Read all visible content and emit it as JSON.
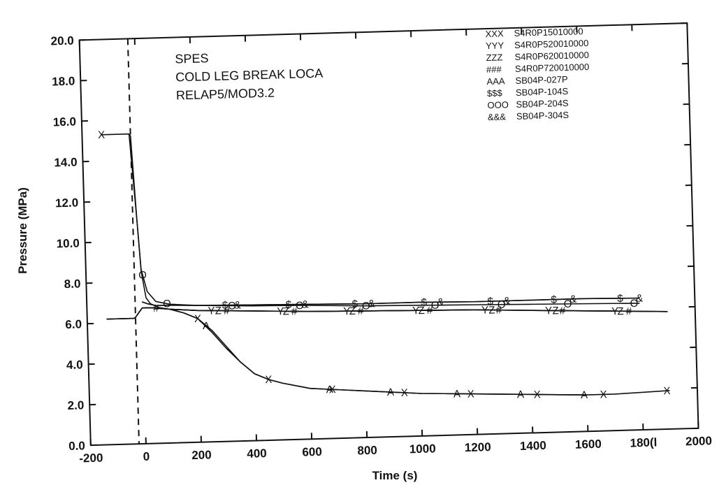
{
  "chart_data": {
    "type": "line",
    "title": "",
    "xlabel": "Time (s)",
    "ylabel": "Pressure (MPa)",
    "xlim": [
      -200,
      2000
    ],
    "ylim": [
      0.0,
      20.0
    ],
    "x_ticks": [
      "-200",
      "0",
      "200",
      "400",
      "600",
      "800",
      "1000",
      "1200",
      "1400",
      "1600",
      "180(l",
      "2000"
    ],
    "y_ticks": [
      "0.0",
      "2.0",
      "4.0",
      "6.0",
      "8.0",
      "10.0",
      "12.0",
      "14.0",
      "16.0",
      "18.0",
      "20.0"
    ],
    "grid": false,
    "legend_position": "top-right",
    "annotations": [
      "SPES",
      "COLD LEG BREAK LOCA",
      "RELAP5/MOD3.2"
    ],
    "vertical_dashed_line_x": -25,
    "series": [
      {
        "name": "S4R0P15010000",
        "marker": "X",
        "legend_marker": "XXX",
        "x": [
          -130,
          -30,
          -25,
          -10,
          0,
          15,
          30,
          60,
          100,
          150,
          200,
          250,
          300,
          350,
          400,
          450,
          500,
          600,
          700,
          800,
          900,
          1000,
          1100,
          1200,
          1300,
          1400,
          1500,
          1600,
          1700,
          1800,
          1900
        ],
        "y": [
          15.3,
          15.3,
          15.2,
          11.0,
          8.5,
          7.2,
          6.9,
          6.7,
          6.6,
          6.4,
          6.1,
          5.4,
          4.6,
          3.9,
          3.3,
          3.0,
          2.8,
          2.5,
          2.4,
          2.3,
          2.2,
          2.1,
          2.05,
          2.0,
          1.95,
          1.9,
          1.85,
          1.8,
          1.8,
          1.85,
          1.9
        ],
        "marker_x": [
          -130,
          200,
          450,
          680,
          940,
          1180,
          1420,
          1660,
          1890
        ]
      },
      {
        "name": "S4R0P520010000",
        "marker": "Y",
        "legend_marker": "YYY",
        "x": [
          -130,
          -30,
          -25,
          0,
          30,
          100,
          200,
          400,
          600,
          800,
          1000,
          1200,
          1400,
          1600,
          1700,
          1800,
          1900
        ],
        "y": [
          6.2,
          6.2,
          6.25,
          6.7,
          6.7,
          6.6,
          6.5,
          6.4,
          6.3,
          6.25,
          6.2,
          6.15,
          6.05,
          5.95,
          5.9,
          5.85,
          5.8
        ],
        "marker_x": [
          250,
          500,
          740,
          990,
          1240,
          1470,
          1710
        ]
      },
      {
        "name": "S4R0P620010000",
        "marker": "Z",
        "legend_marker": "ZZZ",
        "x": [
          -130,
          -30,
          -25,
          0,
          30,
          100,
          200,
          400,
          600,
          800,
          1000,
          1200,
          1400,
          1600,
          1700,
          1800,
          1900
        ],
        "y": [
          6.2,
          6.2,
          6.25,
          6.7,
          6.7,
          6.6,
          6.5,
          6.4,
          6.3,
          6.25,
          6.2,
          6.15,
          6.05,
          5.95,
          5.9,
          5.85,
          5.8
        ],
        "marker_x": [
          275,
          520,
          760,
          1010,
          1265,
          1495,
          1730
        ]
      },
      {
        "name": "S4R0P720010000",
        "marker": "#",
        "legend_marker": "###",
        "x": [
          -130,
          -30,
          -25,
          0,
          30,
          100,
          200,
          400,
          600,
          800,
          1000,
          1200,
          1400,
          1600,
          1700,
          1800,
          1900
        ],
        "y": [
          6.2,
          6.2,
          6.25,
          6.7,
          6.7,
          6.6,
          6.5,
          6.4,
          6.3,
          6.25,
          6.2,
          6.15,
          6.05,
          5.95,
          5.9,
          5.85,
          5.8
        ],
        "marker_x": [
          50,
          305,
          550,
          790,
          1040,
          1290,
          1520,
          1760
        ]
      },
      {
        "name": "SB04P-027P",
        "marker": "A",
        "legend_marker": "AAA",
        "x": [
          100,
          150,
          200,
          250,
          300,
          350,
          400,
          450,
          500,
          600,
          700,
          800,
          900,
          1000,
          1100,
          1200,
          1300,
          1400,
          1500,
          1600
        ],
        "y": [
          6.6,
          6.4,
          6.1,
          5.5,
          4.7,
          3.9,
          3.3,
          3.0,
          2.8,
          2.5,
          2.4,
          2.3,
          2.2,
          2.1,
          2.05,
          2.0,
          1.95,
          1.9,
          1.85,
          1.8
        ],
        "marker_x": [
          230,
          670,
          890,
          1130,
          1360,
          1590
        ]
      },
      {
        "name": "SB04P-104S",
        "marker": "$",
        "legend_marker": "$$$",
        "x": [
          0,
          20,
          50,
          100,
          200,
          400,
          600,
          800,
          1000,
          1200,
          1400,
          1600,
          1800
        ],
        "y": [
          7.0,
          6.9,
          6.8,
          6.8,
          6.75,
          6.7,
          6.65,
          6.6,
          6.6,
          6.55,
          6.55,
          6.55,
          6.5
        ],
        "marker_x": [
          300,
          530,
          770,
          1020,
          1260,
          1490,
          1730
        ]
      },
      {
        "name": "SB04P-204S",
        "marker": "O",
        "legend_marker": "OOO",
        "x": [
          -30,
          -10,
          0,
          20,
          50,
          100,
          200,
          400,
          600,
          800,
          1000,
          1200,
          1400,
          1600,
          1800
        ],
        "y": [
          15.3,
          11.0,
          8.6,
          7.5,
          7.0,
          6.85,
          6.75,
          6.65,
          6.6,
          6.5,
          6.45,
          6.4,
          6.35,
          6.3,
          6.25
        ],
        "marker_x": [
          5,
          90,
          325,
          570,
          810,
          1060,
          1300,
          1540,
          1780
        ]
      },
      {
        "name": "SB04P-304S",
        "marker": "&",
        "legend_marker": "&&&",
        "x": [
          0,
          20,
          50,
          100,
          200,
          400,
          600,
          800,
          1000,
          1200,
          1400,
          1600,
          1800
        ],
        "y": [
          7.0,
          6.9,
          6.8,
          6.8,
          6.75,
          6.7,
          6.65,
          6.6,
          6.6,
          6.55,
          6.55,
          6.55,
          6.5
        ],
        "marker_x": [
          345,
          590,
          830,
          1080,
          1320,
          1560,
          1800
        ]
      }
    ]
  }
}
